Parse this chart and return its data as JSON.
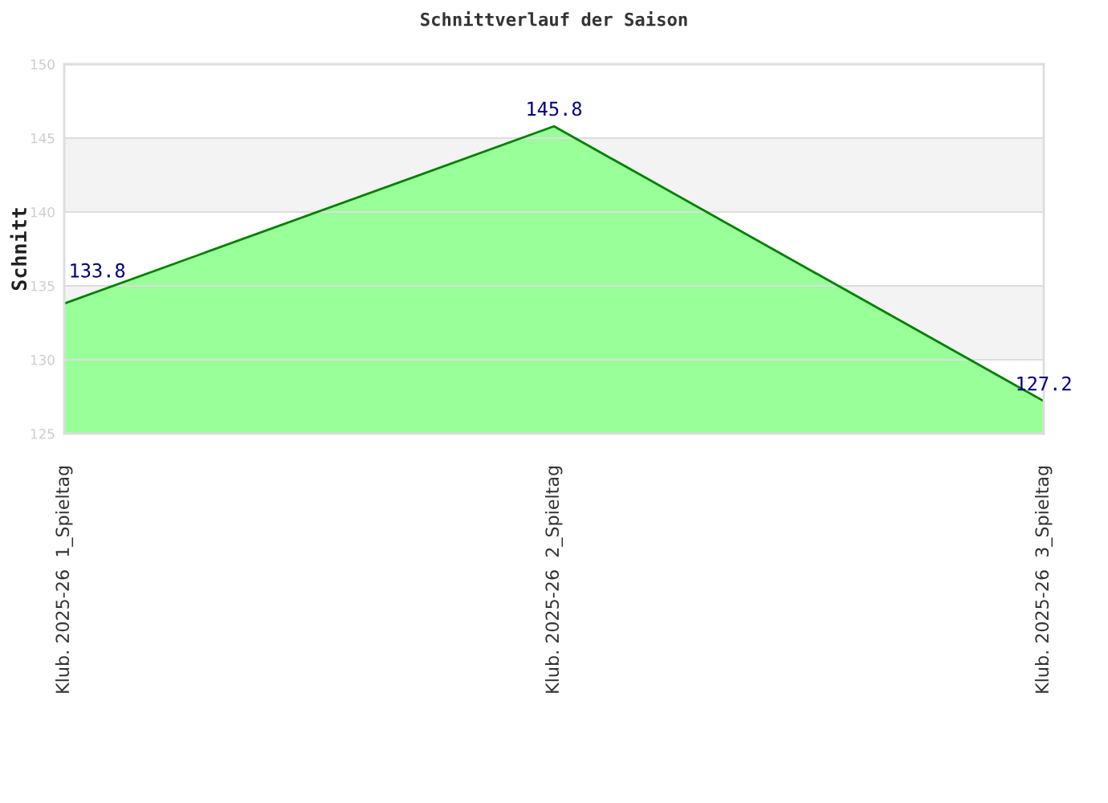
{
  "chart_data": {
    "type": "area",
    "title": "Schnittverlauf der Saison",
    "ylabel": "Schnitt",
    "categories": [
      "Klub. 2025-26  1_Spieltag",
      "Klub. 2025-26  2_Spieltag",
      "Klub. 2025-26  3_Spieltag"
    ],
    "series": [
      {
        "color": "#99ff99",
        "values": [
          133.8,
          145.8,
          127.2
        ]
      }
    ],
    "ylim": [
      125,
      150
    ],
    "yticks": [
      125,
      130,
      135,
      140,
      145,
      150
    ],
    "grid": "y",
    "bands": [
      {
        "axis": "y",
        "from": 140,
        "to": 145,
        "color": "#f3f3f3"
      },
      {
        "axis": "y",
        "from": 130,
        "to": 135,
        "color": "#f3f3f3"
      }
    ],
    "data_labels": true
  }
}
